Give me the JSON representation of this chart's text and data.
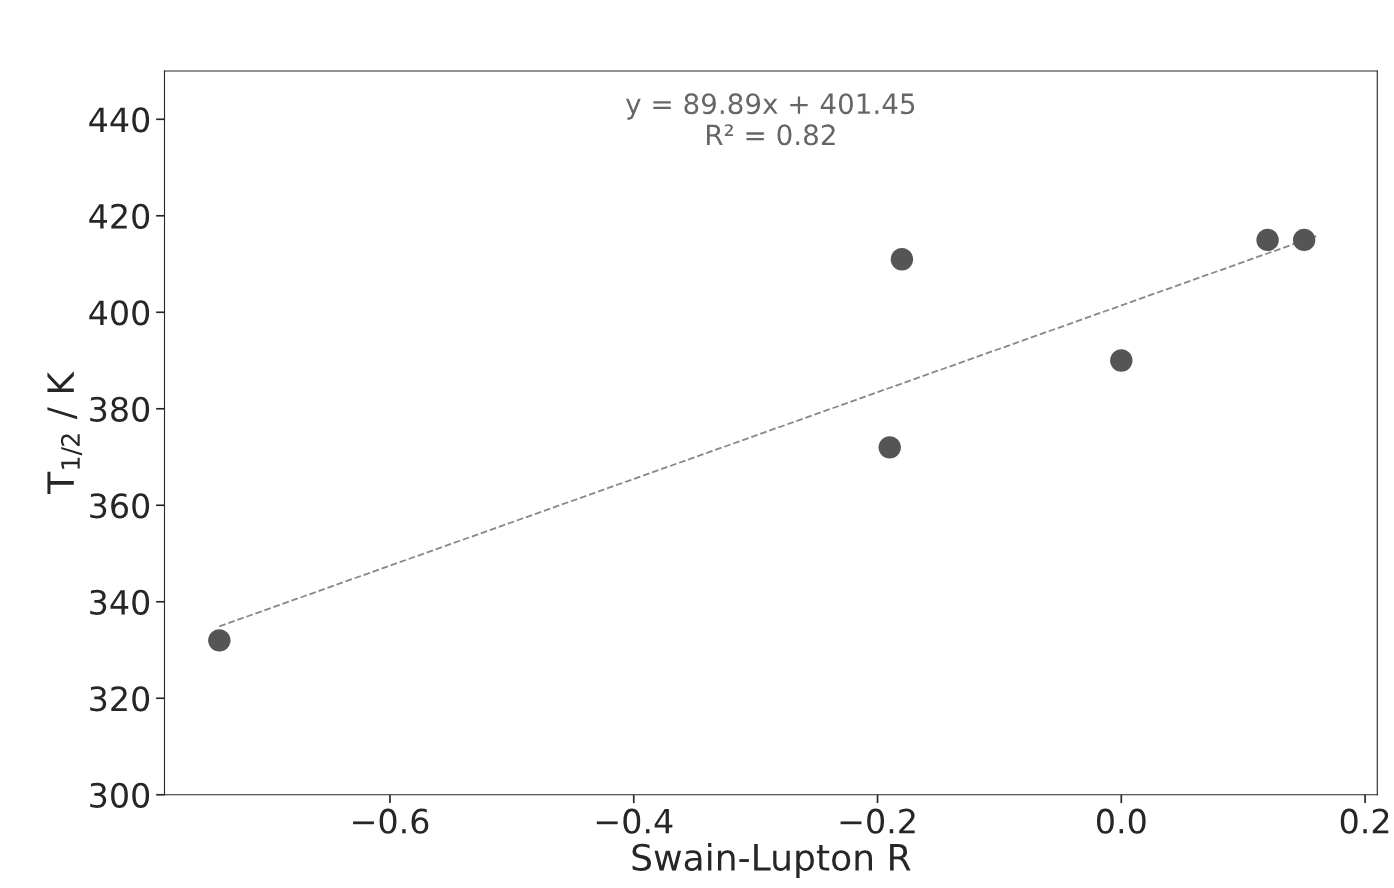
{
  "chart_data": {
    "type": "scatter",
    "xlabel": "Swain-Lupton R",
    "ylabel": "T$_{1/2}$ / K",
    "annotations": [
      "y = 89.89x + 401.45\nR² = 0.82"
    ],
    "xlim": [
      -0.785,
      0.21
    ],
    "xticks": [
      {
        "value": -0.6,
        "label": "−0.6"
      },
      {
        "value": -0.4,
        "label": "−0.4"
      },
      {
        "value": -0.2,
        "label": "−0.2"
      },
      {
        "value": 0.0,
        "label": "0.0"
      },
      0.2
    ],
    "ylim": [
      300,
      450
    ],
    "yticks": [
      300,
      320,
      340,
      360,
      380,
      400,
      420,
      440
    ],
    "grid": false,
    "legend": false,
    "marker": "circle",
    "series": [
      {
        "color": "#555555",
        "x": [
          -0.74,
          -0.19,
          -0.18,
          0.0,
          0.12,
          0.15
        ],
        "values": [
          332,
          372,
          411,
          390,
          415,
          415
        ]
      },
      {
        "type": "line",
        "color": "#888888",
        "line_style": "dashed",
        "marker": "none",
        "x": [
          -0.74,
          0.16
        ],
        "values": [
          334.9,
          415.8
        ]
      }
    ]
  }
}
